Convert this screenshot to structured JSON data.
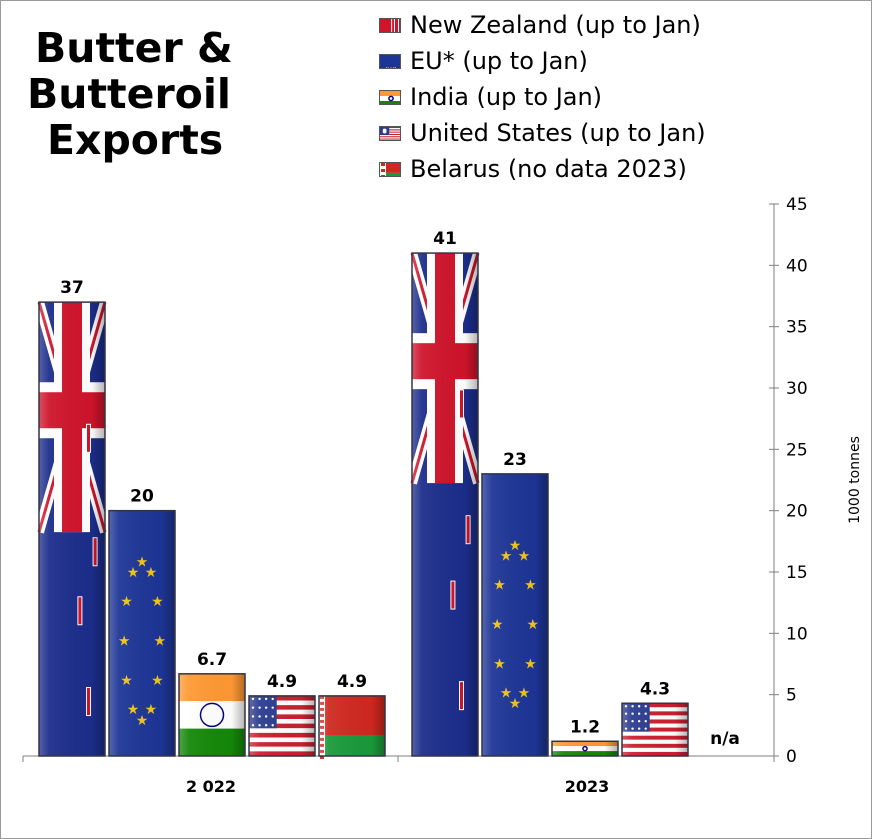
{
  "title_lines": [
    "Butter &",
    "Butteroil",
    "Exports"
  ],
  "legend": [
    {
      "label": "New Zealand (up to Jan)",
      "color": "#1c2d8c",
      "pattern": "flag-nz"
    },
    {
      "label": "EU* (up to Jan)",
      "color": "#1d3596",
      "pattern": "flag-eu"
    },
    {
      "label": "India (up to Jan)",
      "color": "#ff9933",
      "pattern": "flag-india"
    },
    {
      "label": "United States (up to Jan)",
      "color": "#c8202f",
      "pattern": "flag-us"
    },
    {
      "label": "Belarus (no data 2023)",
      "color": "#d0281f",
      "pattern": "flag-belarus"
    }
  ],
  "chart_data": {
    "type": "bar",
    "categories": [
      "2 022",
      "2023"
    ],
    "series": [
      {
        "name": "New Zealand (up to Jan)",
        "values": [
          37,
          41
        ]
      },
      {
        "name": "EU* (up to Jan)",
        "values": [
          20,
          23
        ]
      },
      {
        "name": "India (up to Jan)",
        "values": [
          6.7,
          1.2
        ]
      },
      {
        "name": "United States (up to Jan)",
        "values": [
          4.9,
          4.3
        ]
      },
      {
        "name": "Belarus (no data 2023)",
        "values": [
          4.9,
          null
        ]
      }
    ],
    "data_labels": [
      [
        "37",
        "20",
        "6.7",
        "4.9",
        "4.9"
      ],
      [
        "41",
        "23",
        "1.2",
        "4.3",
        "n/a"
      ]
    ],
    "ylabel": "1000 tonnes",
    "ylim": [
      0,
      45
    ],
    "yticks": [
      "0",
      "5",
      "10",
      "15",
      "20",
      "25",
      "30",
      "35",
      "40",
      "45"
    ],
    "y_axis_side": "right",
    "legend_position": "top-right",
    "grid": false
  }
}
